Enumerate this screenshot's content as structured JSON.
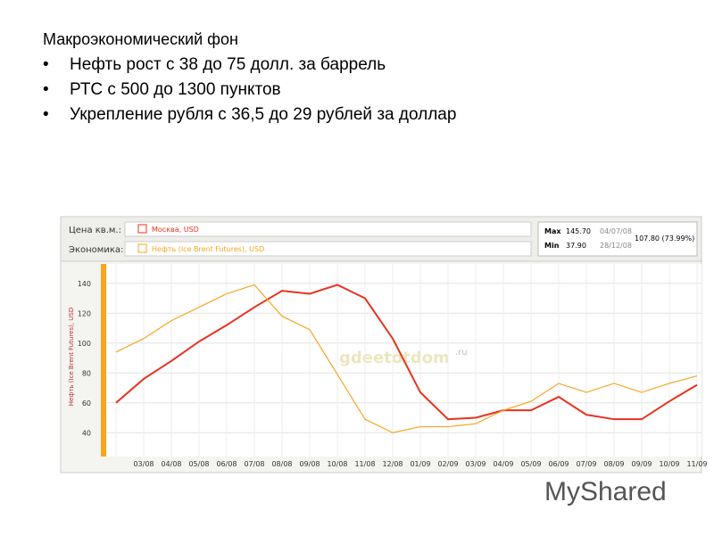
{
  "slide": {
    "title": "Макроэкономический фон",
    "bullets": [
      "Нефть рост с 38 до 75 долл. за баррель",
      "РТС с 500 до 1300 пунктов",
      "Укрепление рубля с 36,5 до 29 рублей за доллар"
    ],
    "watermark": "MyShared"
  },
  "chart_panel": {
    "price_label": "Цена кв.м.:",
    "economy_label": "Экономика:",
    "max_label": "Max",
    "max_value": "145.70",
    "max_date": "04/07/08",
    "min_label": "Min",
    "min_value": "37.90",
    "min_date": "28/12/08",
    "range": "107.80 (73.99%)",
    "site": "gdeetotdom",
    "site_suffix": ".ru"
  },
  "chart_data": {
    "type": "line",
    "y_label": "Нефть (Ice Brent Futures), USD",
    "categories": [
      null,
      "03/08",
      "04/08",
      "05/08",
      "06/08",
      "07/08",
      "08/08",
      "09/08",
      "10/08",
      "11/08",
      "12/08",
      "01/09",
      "02/09",
      "03/09",
      "04/09",
      "05/09",
      "06/09",
      "07/09",
      "08/09",
      "09/09",
      "10/09",
      "11/09"
    ],
    "series": [
      {
        "name": "Москва, USD",
        "color": "#e8321e",
        "values": [
          60,
          76,
          88,
          101,
          112,
          124,
          135,
          133,
          139,
          130,
          103,
          67,
          49,
          50,
          55,
          55,
          64,
          52,
          49,
          49,
          61,
          72
        ]
      },
      {
        "name": "Нефть (Ice Brent Futures), USD",
        "color": "#f5a623",
        "values": [
          94,
          103,
          115,
          124,
          133,
          139,
          118,
          109,
          79,
          49,
          40,
          44,
          44,
          46,
          55,
          61,
          73,
          67,
          73,
          67,
          73,
          78
        ]
      }
    ],
    "ylim": [
      30,
      150
    ],
    "yticks": [
      40,
      60,
      80,
      100,
      120,
      140
    ],
    "grid": true
  }
}
